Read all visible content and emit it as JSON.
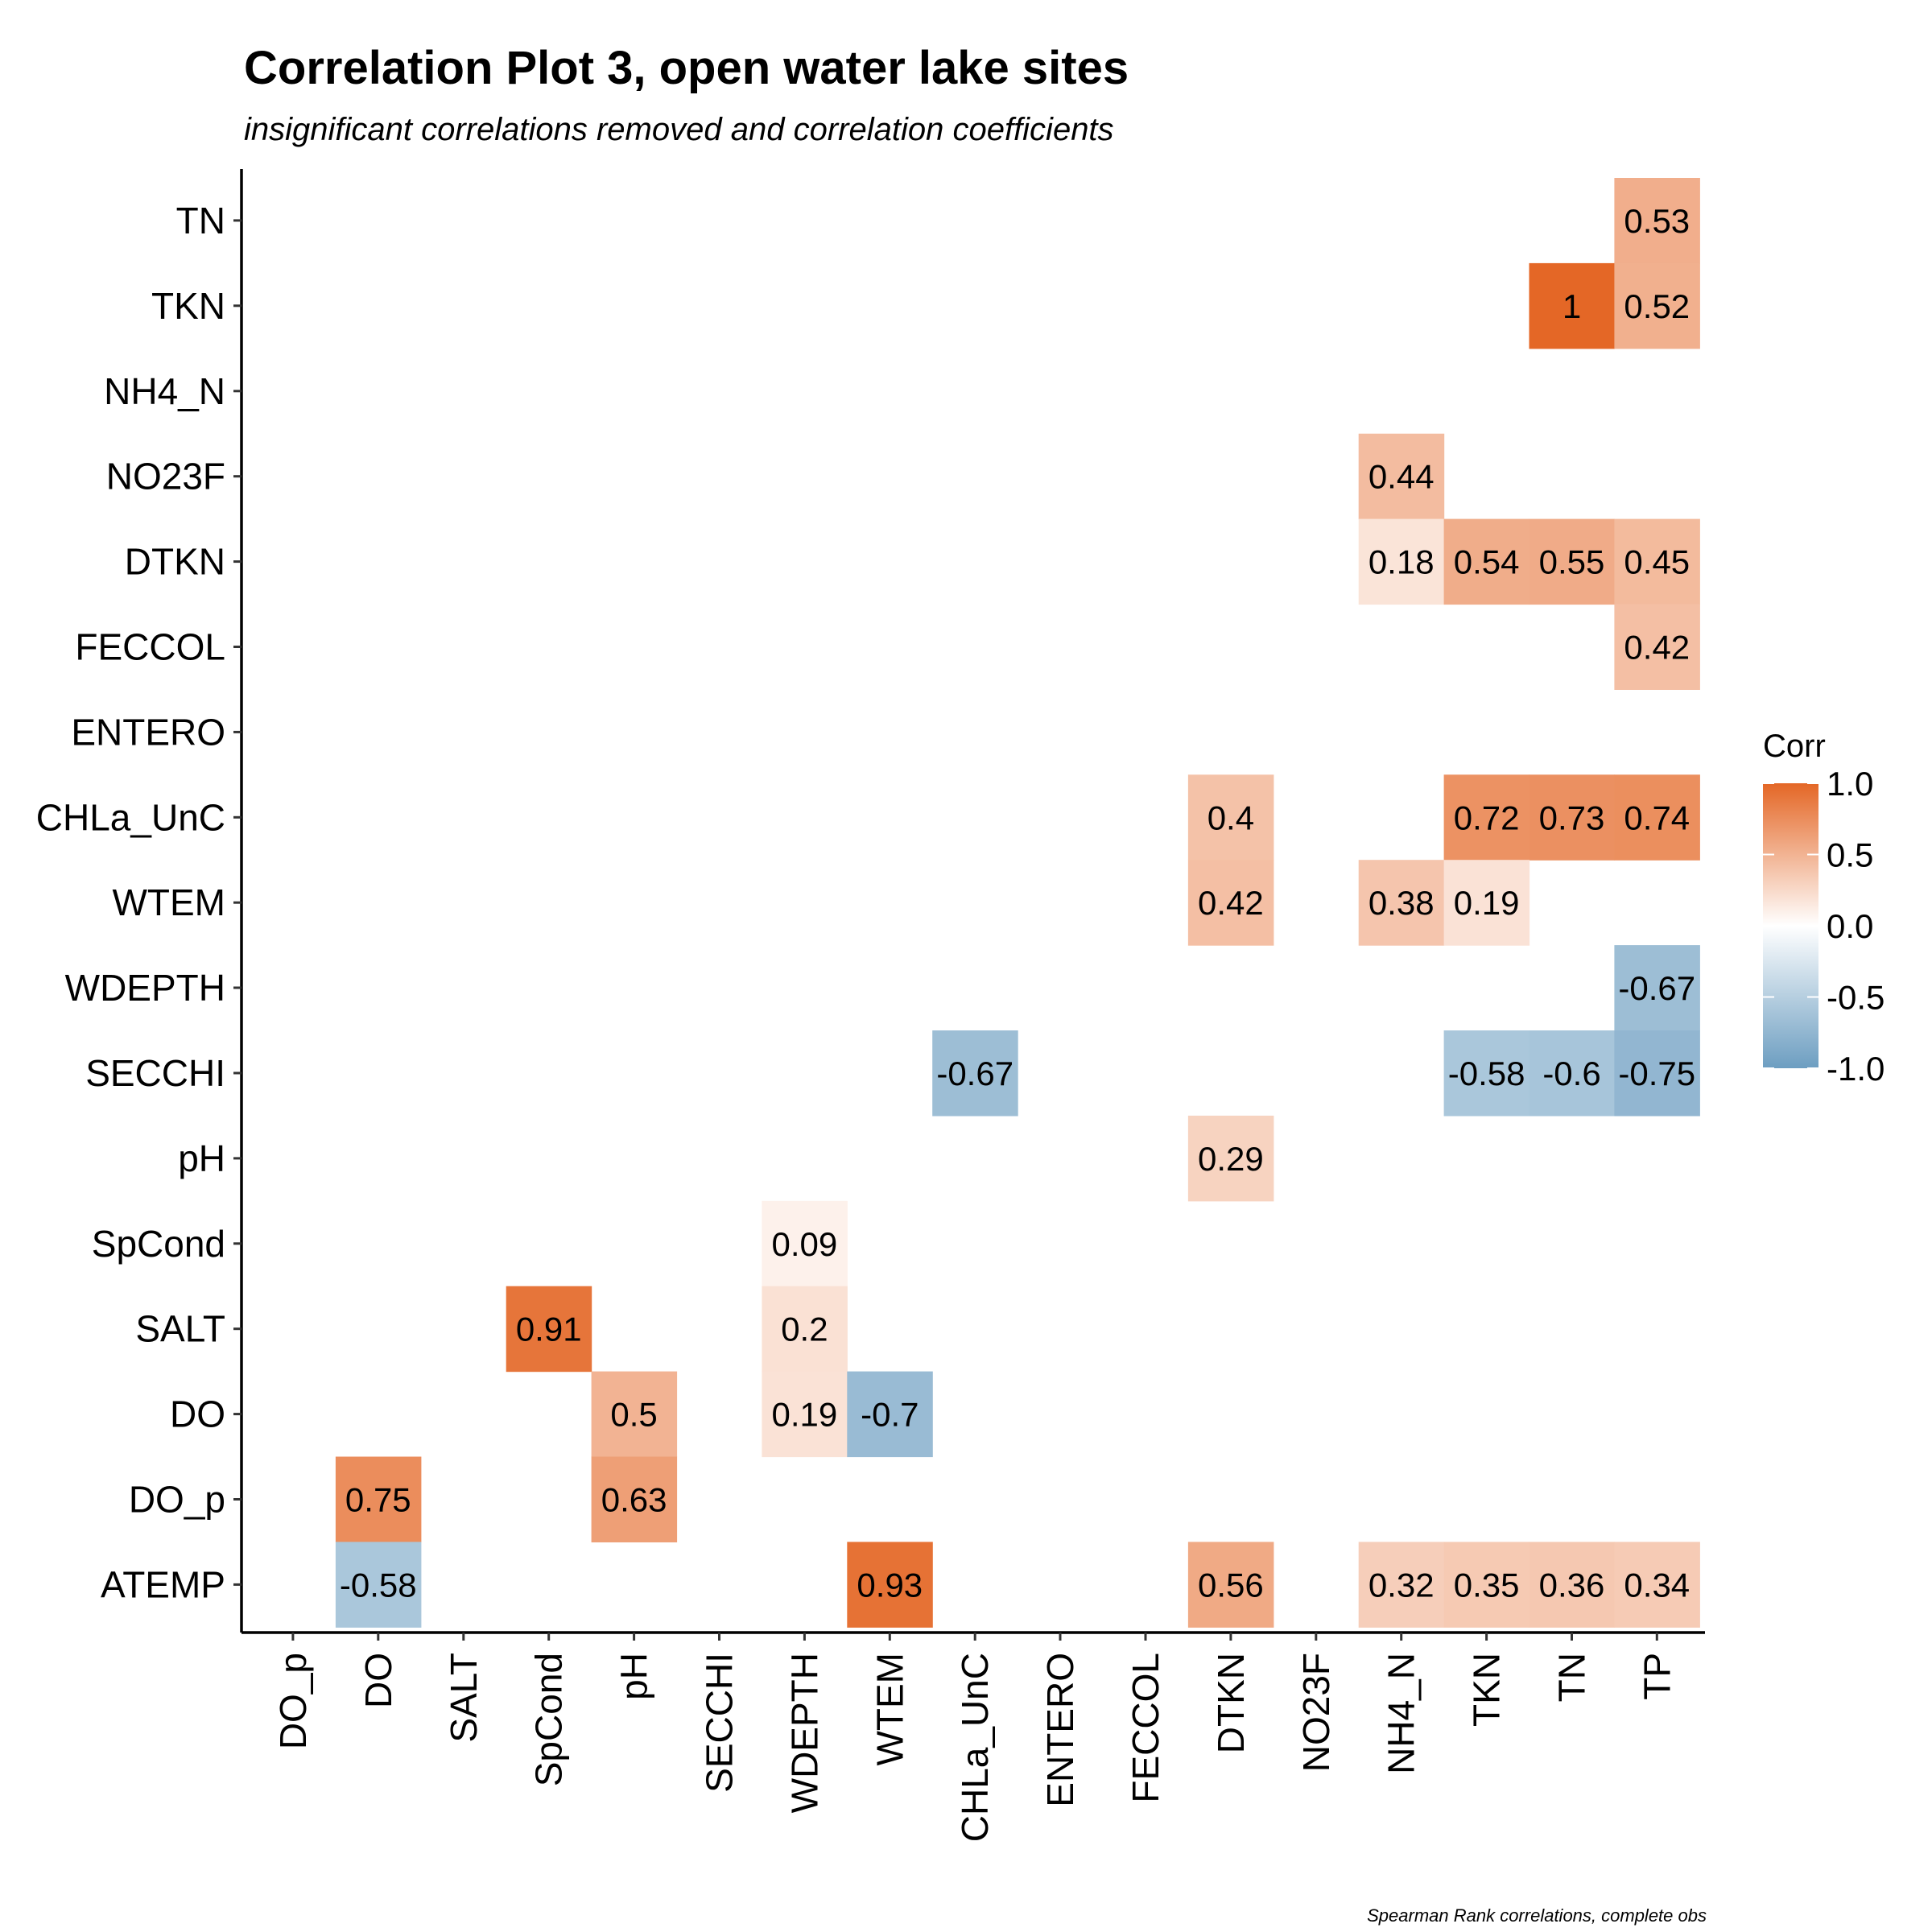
{
  "chart_data": {
    "type": "heatmap",
    "title": "Correlation Plot 3, open water lake sites",
    "subtitle": "insignificant correlations removed and correlation coefficients",
    "caption": "Spearman Rank correlations, complete obs",
    "x_categories": [
      "DO_p",
      "DO",
      "SALT",
      "SpCond",
      "pH",
      "SECCHI",
      "WDEPTH",
      "WTEM",
      "CHLa_UnC",
      "ENTERO",
      "FECCOL",
      "DTKN",
      "NO23F",
      "NH4_N",
      "TKN",
      "TN",
      "TP"
    ],
    "y_categories": [
      "TN",
      "TKN",
      "NH4_N",
      "NO23F",
      "DTKN",
      "FECCOL",
      "ENTERO",
      "CHLa_UnC",
      "WTEM",
      "WDEPTH",
      "SECCHI",
      "pH",
      "SpCond",
      "SALT",
      "DO",
      "DO_p",
      "ATEMP"
    ],
    "cells": [
      {
        "x": "TP",
        "y": "TN",
        "value": 0.53,
        "label": "0.53"
      },
      {
        "x": "TN",
        "y": "TKN",
        "value": 1,
        "label": "1"
      },
      {
        "x": "TP",
        "y": "TKN",
        "value": 0.52,
        "label": "0.52"
      },
      {
        "x": "NH4_N",
        "y": "NO23F",
        "value": 0.44,
        "label": "0.44"
      },
      {
        "x": "NH4_N",
        "y": "DTKN",
        "value": 0.18,
        "label": "0.18"
      },
      {
        "x": "TKN",
        "y": "DTKN",
        "value": 0.54,
        "label": "0.54"
      },
      {
        "x": "TN",
        "y": "DTKN",
        "value": 0.55,
        "label": "0.55"
      },
      {
        "x": "TP",
        "y": "DTKN",
        "value": 0.45,
        "label": "0.45"
      },
      {
        "x": "TP",
        "y": "FECCOL",
        "value": 0.42,
        "label": "0.42"
      },
      {
        "x": "DTKN",
        "y": "CHLa_UnC",
        "value": 0.4,
        "label": "0.4"
      },
      {
        "x": "TKN",
        "y": "CHLa_UnC",
        "value": 0.72,
        "label": "0.72"
      },
      {
        "x": "TN",
        "y": "CHLa_UnC",
        "value": 0.73,
        "label": "0.73"
      },
      {
        "x": "TP",
        "y": "CHLa_UnC",
        "value": 0.74,
        "label": "0.74"
      },
      {
        "x": "DTKN",
        "y": "WTEM",
        "value": 0.42,
        "label": "0.42"
      },
      {
        "x": "NH4_N",
        "y": "WTEM",
        "value": 0.38,
        "label": "0.38"
      },
      {
        "x": "TKN",
        "y": "WTEM",
        "value": 0.19,
        "label": "0.19"
      },
      {
        "x": "TP",
        "y": "WDEPTH",
        "value": -0.67,
        "label": "-0.67"
      },
      {
        "x": "CHLa_UnC",
        "y": "SECCHI",
        "value": -0.67,
        "label": "-0.67"
      },
      {
        "x": "TKN",
        "y": "SECCHI",
        "value": -0.58,
        "label": "-0.58"
      },
      {
        "x": "TN",
        "y": "SECCHI",
        "value": -0.6,
        "label": "-0.6"
      },
      {
        "x": "TP",
        "y": "SECCHI",
        "value": -0.75,
        "label": "-0.75"
      },
      {
        "x": "DTKN",
        "y": "pH",
        "value": 0.29,
        "label": "0.29"
      },
      {
        "x": "WDEPTH",
        "y": "SpCond",
        "value": 0.09,
        "label": "0.09"
      },
      {
        "x": "SpCond",
        "y": "SALT",
        "value": 0.91,
        "label": "0.91"
      },
      {
        "x": "WDEPTH",
        "y": "SALT",
        "value": 0.2,
        "label": "0.2"
      },
      {
        "x": "pH",
        "y": "DO",
        "value": 0.5,
        "label": "0.5"
      },
      {
        "x": "WDEPTH",
        "y": "DO",
        "value": 0.19,
        "label": "0.19"
      },
      {
        "x": "WTEM",
        "y": "DO",
        "value": -0.7,
        "label": "-0.7"
      },
      {
        "x": "DO",
        "y": "DO_p",
        "value": 0.75,
        "label": "0.75"
      },
      {
        "x": "pH",
        "y": "DO_p",
        "value": 0.63,
        "label": "0.63"
      },
      {
        "x": "DO",
        "y": "ATEMP",
        "value": -0.58,
        "label": "-0.58"
      },
      {
        "x": "WTEM",
        "y": "ATEMP",
        "value": 0.93,
        "label": "0.93"
      },
      {
        "x": "DTKN",
        "y": "ATEMP",
        "value": 0.56,
        "label": "0.56"
      },
      {
        "x": "NH4_N",
        "y": "ATEMP",
        "value": 0.32,
        "label": "0.32"
      },
      {
        "x": "TKN",
        "y": "ATEMP",
        "value": 0.35,
        "label": "0.35"
      },
      {
        "x": "TN",
        "y": "ATEMP",
        "value": 0.36,
        "label": "0.36"
      },
      {
        "x": "TP",
        "y": "ATEMP",
        "value": 0.34,
        "label": "0.34"
      }
    ],
    "legend": {
      "title": "Corr",
      "position": "right",
      "ticks": [
        {
          "value": 1,
          "label": "1.0"
        },
        {
          "value": 0.5,
          "label": "0.5"
        },
        {
          "value": 0,
          "label": "0.0"
        },
        {
          "value": -0.5,
          "label": "-0.5"
        },
        {
          "value": -1,
          "label": "-1.0"
        }
      ],
      "range": [
        -1,
        1
      ]
    },
    "colors": {
      "high": "#E46726",
      "mid": "#FFFFFF",
      "low": "#6D9EC1"
    },
    "grid": false
  }
}
